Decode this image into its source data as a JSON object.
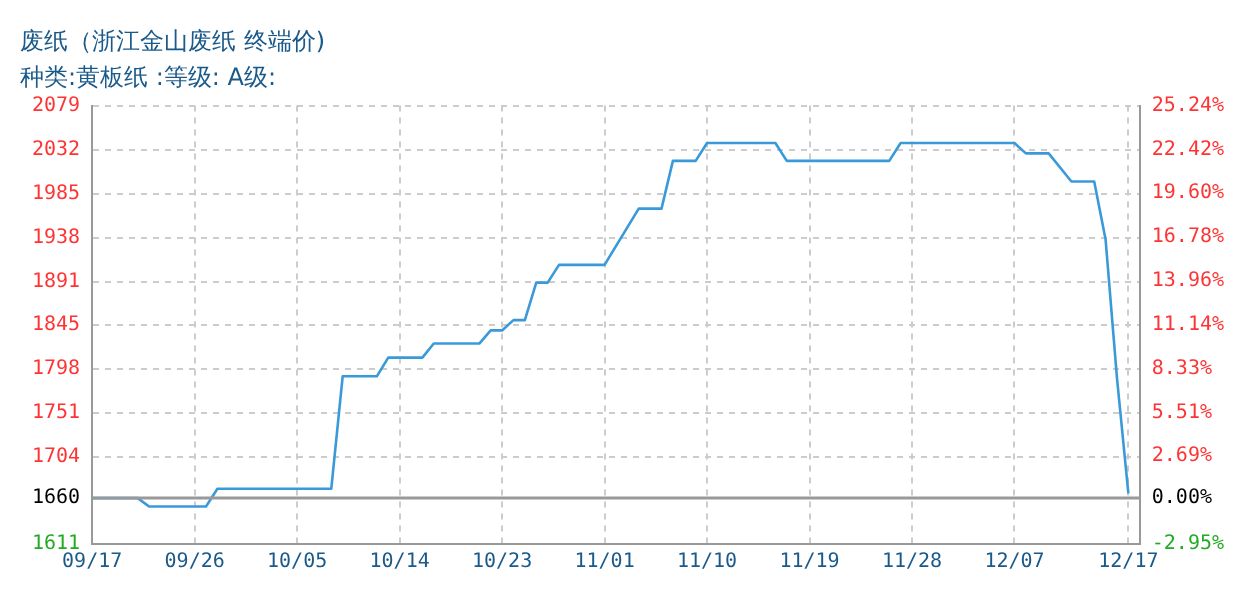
{
  "chart_data": {
    "type": "line",
    "title": "废纸（浙江金山废纸 终端价)",
    "subtitle": "种类:黄板纸 :等级: A级:",
    "x": [
      "--09-17",
      "--09-21",
      "--09-22",
      "--09-27",
      "--09-28",
      "--10-08",
      "--10-09",
      "--10-12",
      "--10-13",
      "--10-16",
      "--10-17",
      "--10-21",
      "--10-22",
      "--10-23",
      "--10-24",
      "--10-25",
      "--10-26",
      "--10-27",
      "--10-28",
      "--11-01",
      "--11-04",
      "--11-06",
      "--11-07",
      "--11-09",
      "--11-10",
      "--11-16",
      "--11-17",
      "--11-26",
      "--11-27",
      "--12-07",
      "--12-08",
      "--12-10",
      "--12-12",
      "--12-14",
      "--12-15",
      "--12-16",
      "--12-17"
    ],
    "series": [
      {
        "color": "#3a9ad9",
        "values": [
          1660,
          1660,
          1651,
          1651,
          1670,
          1670,
          1790,
          1790,
          1810,
          1810,
          1825,
          1825,
          1839,
          1839,
          1850,
          1850,
          1890,
          1890,
          1909,
          1909,
          1969,
          1969,
          2020,
          2020,
          2039,
          2039,
          2020,
          2020,
          2039,
          2039,
          2028,
          2028,
          1998,
          1998,
          1936,
          1788,
          1665
        ]
      }
    ],
    "xlim": [
      "--09-17",
      "--12-18"
    ],
    "xticks": [
      {
        "value": "--09-17",
        "label": "09/17"
      },
      {
        "value": "--09-26",
        "label": "09/26"
      },
      {
        "value": "--10-05",
        "label": "10/05"
      },
      {
        "value": "--10-14",
        "label": "10/14"
      },
      {
        "value": "--10-23",
        "label": "10/23"
      },
      {
        "value": "--11-01",
        "label": "11/01"
      },
      {
        "value": "--11-10",
        "label": "11/10"
      },
      {
        "value": "--11-19",
        "label": "11/19"
      },
      {
        "value": "--11-28",
        "label": "11/28"
      },
      {
        "value": "--12-07",
        "label": "12/07"
      },
      {
        "value": "--12-17",
        "label": "12/17"
      }
    ],
    "ylim": [
      1611,
      2079
    ],
    "yticks": [
      1611,
      1660,
      1704,
      1751,
      1798,
      1845,
      1891,
      1938,
      1985,
      2032,
      2079
    ],
    "y2lim": [
      -2.95,
      25.24
    ],
    "y2ticks": [
      {
        "value": -2.95,
        "label": "-2.95%"
      },
      {
        "value": 0,
        "label": "0.00%"
      },
      {
        "value": 2.69,
        "label": "2.69%"
      },
      {
        "value": 5.51,
        "label": "5.51%"
      },
      {
        "value": 8.33,
        "label": "8.33%"
      },
      {
        "value": 11.14,
        "label": "11.14%"
      },
      {
        "value": 13.96,
        "label": "13.96%"
      },
      {
        "value": 16.78,
        "label": "16.78%"
      },
      {
        "value": 19.6,
        "label": "19.60%"
      },
      {
        "value": 22.42,
        "label": "22.42%"
      },
      {
        "value": 25.24,
        "label": "25.24%"
      }
    ],
    "ref_lines": [
      {
        "axis": "y",
        "value": 1660,
        "color": "#999999"
      }
    ],
    "grid": true,
    "legend": false,
    "marker": "none",
    "line_style": "solid"
  }
}
